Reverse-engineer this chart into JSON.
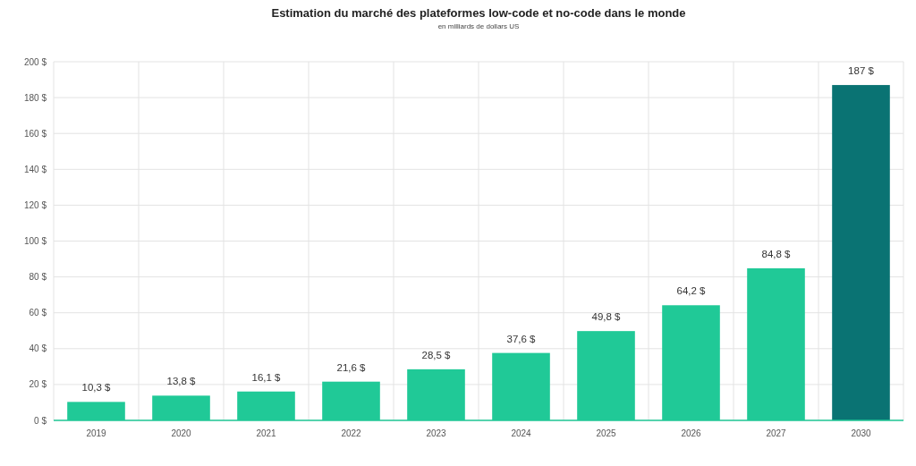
{
  "chart_data": {
    "type": "bar",
    "title": "Estimation du marché des plateformes low-code et no-code dans le monde",
    "subtitle": "en milliards de dollars US",
    "categories": [
      "2019",
      "2020",
      "2021",
      "2022",
      "2023",
      "2024",
      "2025",
      "2026",
      "2027",
      "2030"
    ],
    "values": [
      10.3,
      13.8,
      16.1,
      21.6,
      28.5,
      37.6,
      49.8,
      64.2,
      84.8,
      187
    ],
    "colors": [
      "#20c997",
      "#20c997",
      "#20c997",
      "#20c997",
      "#20c997",
      "#20c997",
      "#20c997",
      "#20c997",
      "#20c997",
      "#0a7373"
    ],
    "value_labels": [
      "10,3 $",
      "13,8 $",
      "16,1 $",
      "21,6 $",
      "28,5 $",
      "37,6 $",
      "49,8 $",
      "64,2 $",
      "84,8 $",
      "187 $"
    ],
    "ylim": [
      0,
      200
    ],
    "yticks": [
      {
        "value": 0,
        "label": "0 $"
      },
      {
        "value": 20,
        "label": "20 $"
      },
      {
        "value": 40,
        "label": "40 $"
      },
      {
        "value": 60,
        "label": "60 $"
      },
      {
        "value": 80,
        "label": "80 $"
      },
      {
        "value": 100,
        "label": "100 $"
      },
      {
        "value": 120,
        "label": "120 $"
      },
      {
        "value": 140,
        "label": "140 $"
      },
      {
        "value": 160,
        "label": "160 $"
      },
      {
        "value": 180,
        "label": "180 $"
      },
      {
        "value": 200,
        "label": "200 $"
      }
    ],
    "grid": true
  }
}
